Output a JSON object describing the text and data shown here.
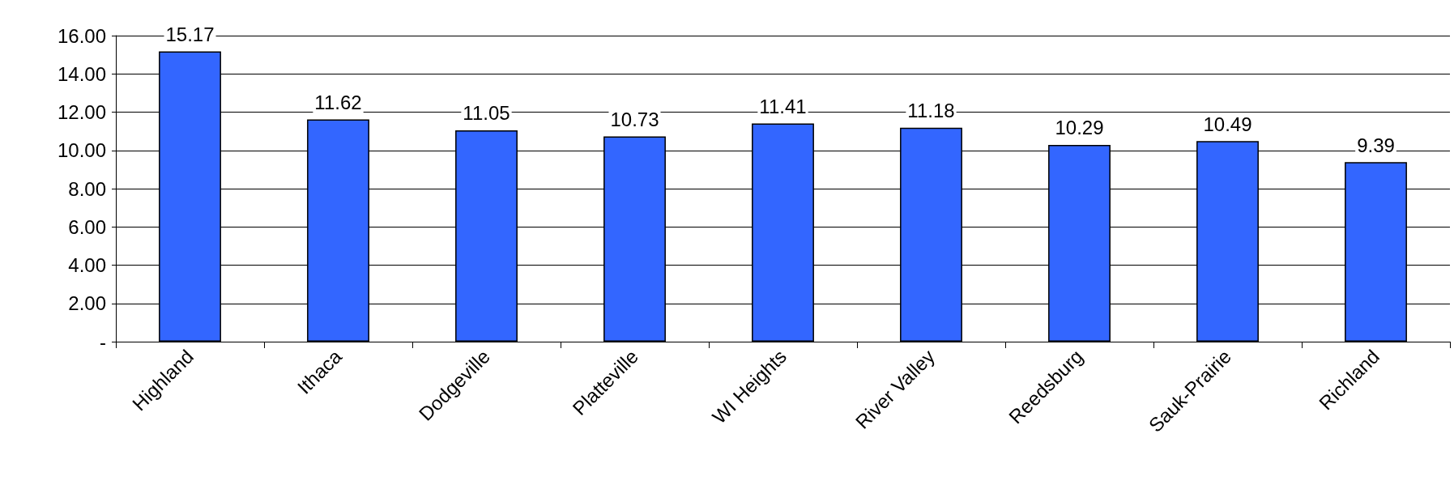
{
  "chart_data": {
    "type": "bar",
    "categories": [
      "Highland",
      "Ithaca",
      "Dodgeville",
      "Platteville",
      "WI Heights",
      "River Valley",
      "Reedsburg",
      "Sauk-Prairie",
      "Richland"
    ],
    "values": [
      15.17,
      11.62,
      11.05,
      10.73,
      11.41,
      11.18,
      10.29,
      10.49,
      9.39
    ],
    "color": "#3366ff",
    "ylim": [
      0,
      16
    ],
    "yticks": [
      {
        "value": 0,
        "label": "-"
      },
      {
        "value": 2,
        "label": "2.00"
      },
      {
        "value": 4,
        "label": "4.00"
      },
      {
        "value": 6,
        "label": "6.00"
      },
      {
        "value": 8,
        "label": "8.00"
      },
      {
        "value": 10,
        "label": "10.00"
      },
      {
        "value": 12,
        "label": "12.00"
      },
      {
        "value": 14,
        "label": "14.00"
      },
      {
        "value": 16,
        "label": "16.00"
      }
    ],
    "grid": "y",
    "data_labels": true
  }
}
